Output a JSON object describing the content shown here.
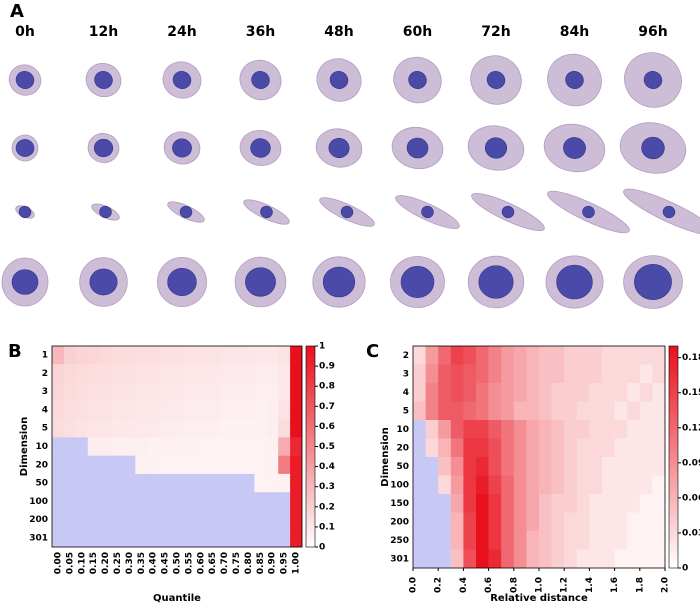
{
  "panel_a": {
    "label": "A",
    "time_points": [
      "0h",
      "12h",
      "24h",
      "36h",
      "48h",
      "60h",
      "72h",
      "84h",
      "96h"
    ]
  },
  "chart_data": [
    {
      "type": "heatmap",
      "panel": "B",
      "xlabel": "Quantile",
      "ylabel": "Dimension",
      "categories": [
        "0.00",
        "0.05",
        "0.10",
        "0.15",
        "0.20",
        "0.25",
        "0.30",
        "0.35",
        "0.40",
        "0.45",
        "0.50",
        "0.55",
        "0.60",
        "0.65",
        "0.70",
        "0.75",
        "0.80",
        "0.85",
        "0.90",
        "0.95",
        "1.00"
      ],
      "y_categories": [
        "1",
        "2",
        "3",
        "4",
        "5",
        "10",
        "20",
        "50",
        "100",
        "200",
        "301"
      ],
      "values": [
        [
          0.3,
          0.2,
          0.18,
          0.17,
          0.16,
          0.15,
          0.15,
          0.14,
          0.14,
          0.13,
          0.13,
          0.12,
          0.12,
          0.12,
          0.11,
          0.11,
          0.11,
          0.1,
          0.1,
          0.12,
          1.0
        ],
        [
          0.18,
          0.16,
          0.15,
          0.14,
          0.14,
          0.13,
          0.13,
          0.12,
          0.12,
          0.11,
          0.11,
          0.1,
          0.1,
          0.1,
          0.09,
          0.09,
          0.09,
          0.08,
          0.08,
          0.1,
          1.0
        ],
        [
          0.17,
          0.15,
          0.14,
          0.13,
          0.13,
          0.12,
          0.12,
          0.11,
          0.11,
          0.1,
          0.1,
          0.09,
          0.09,
          0.09,
          0.08,
          0.08,
          0.08,
          0.07,
          0.07,
          0.1,
          1.0
        ],
        [
          0.16,
          0.14,
          0.13,
          0.12,
          0.12,
          0.11,
          0.11,
          0.1,
          0.1,
          0.09,
          0.09,
          0.08,
          0.08,
          0.08,
          0.07,
          0.07,
          0.07,
          0.06,
          0.07,
          0.12,
          1.0
        ],
        [
          0.15,
          0.13,
          0.12,
          0.11,
          0.11,
          0.1,
          0.1,
          0.09,
          0.09,
          0.08,
          0.08,
          0.07,
          0.07,
          0.07,
          0.06,
          0.06,
          0.06,
          0.06,
          0.07,
          0.15,
          1.0
        ],
        [
          null,
          null,
          null,
          0.08,
          0.08,
          0.07,
          0.07,
          0.07,
          0.06,
          0.06,
          0.06,
          0.06,
          0.05,
          0.05,
          0.05,
          0.05,
          0.05,
          0.05,
          0.06,
          0.35,
          0.9
        ],
        [
          null,
          null,
          null,
          null,
          null,
          null,
          null,
          0.06,
          0.06,
          0.05,
          0.05,
          0.05,
          0.05,
          0.05,
          0.05,
          0.05,
          0.05,
          0.05,
          0.06,
          0.55,
          0.95
        ],
        [
          null,
          null,
          null,
          null,
          null,
          null,
          null,
          null,
          null,
          null,
          null,
          null,
          null,
          null,
          null,
          null,
          null,
          0.05,
          0.05,
          0.06,
          0.95
        ],
        [
          null,
          null,
          null,
          null,
          null,
          null,
          null,
          null,
          null,
          null,
          null,
          null,
          null,
          null,
          null,
          null,
          null,
          null,
          null,
          null,
          0.95
        ],
        [
          null,
          null,
          null,
          null,
          null,
          null,
          null,
          null,
          null,
          null,
          null,
          null,
          null,
          null,
          null,
          null,
          null,
          null,
          null,
          null,
          0.95
        ],
        [
          null,
          null,
          null,
          null,
          null,
          null,
          null,
          null,
          null,
          null,
          null,
          null,
          null,
          null,
          null,
          null,
          null,
          null,
          null,
          null,
          0.95
        ]
      ],
      "colors": [
        "#ffffff",
        "#e8101c"
      ],
      "missing_color": "#c8c8f5",
      "clim": [
        0,
        1
      ],
      "cticks": [
        0,
        0.1,
        0.2,
        0.3,
        0.4,
        0.5,
        0.6,
        0.7,
        0.8,
        0.9,
        1
      ]
    },
    {
      "type": "heatmap",
      "panel": "C",
      "xlabel": "Relative distance",
      "ylabel": "Dimension",
      "bins": [
        0,
        0.1,
        0.2,
        0.3,
        0.4,
        0.5,
        0.6,
        0.7,
        0.8,
        0.9,
        1.0,
        1.1,
        1.2,
        1.3,
        1.4,
        1.5,
        1.6,
        1.7,
        1.8,
        1.9,
        2.0
      ],
      "xlim": [
        0,
        2
      ],
      "xticks": [
        {
          "value": 0,
          "label": "0.0"
        },
        {
          "value": 0.2,
          "label": "0.2"
        },
        {
          "value": 0.4,
          "label": "0.4"
        },
        {
          "value": 0.6,
          "label": "0.6"
        },
        {
          "value": 0.8,
          "label": "0.8"
        },
        {
          "value": 1,
          "label": "1.0"
        },
        {
          "value": 1.2,
          "label": "1.2"
        },
        {
          "value": 1.4,
          "label": "1.4"
        },
        {
          "value": 1.6,
          "label": "1.6"
        },
        {
          "value": 1.8,
          "label": "1.8"
        },
        {
          "value": 2,
          "label": "2.0"
        }
      ],
      "y_categories": [
        "2",
        "3",
        "4",
        "5",
        "10",
        "20",
        "50",
        "100",
        "150",
        "200",
        "250",
        "301"
      ],
      "values": [
        [
          0.03,
          0.08,
          0.12,
          0.15,
          0.14,
          0.12,
          0.1,
          0.08,
          0.07,
          0.06,
          0.05,
          0.05,
          0.04,
          0.04,
          0.04,
          0.03,
          0.03,
          0.03,
          0.03,
          0.03
        ],
        [
          0.04,
          0.09,
          0.13,
          0.14,
          0.13,
          0.12,
          0.1,
          0.08,
          0.07,
          0.06,
          0.05,
          0.05,
          0.04,
          0.04,
          0.04,
          0.03,
          0.03,
          0.03,
          0.02,
          0.03
        ],
        [
          0.04,
          0.1,
          0.13,
          0.14,
          0.13,
          0.11,
          0.09,
          0.08,
          0.07,
          0.06,
          0.05,
          0.04,
          0.04,
          0.04,
          0.03,
          0.03,
          0.03,
          0.02,
          0.03,
          0.02
        ],
        [
          0.05,
          0.1,
          0.13,
          0.13,
          0.12,
          0.11,
          0.09,
          0.08,
          0.06,
          0.06,
          0.05,
          0.04,
          0.04,
          0.03,
          0.03,
          0.03,
          0.02,
          0.03,
          0.02,
          0.02
        ],
        [
          null,
          0.04,
          0.08,
          0.13,
          0.15,
          0.15,
          0.13,
          0.11,
          0.09,
          0.07,
          0.06,
          0.05,
          0.04,
          0.04,
          0.03,
          0.03,
          0.03,
          0.02,
          0.02,
          0.02
        ],
        [
          null,
          0.03,
          0.06,
          0.11,
          0.16,
          0.16,
          0.14,
          0.11,
          0.09,
          0.07,
          0.06,
          0.05,
          0.04,
          0.03,
          0.03,
          0.03,
          0.02,
          0.02,
          0.02,
          0.02
        ],
        [
          null,
          null,
          0.05,
          0.09,
          0.16,
          0.17,
          0.14,
          0.11,
          0.09,
          0.07,
          0.06,
          0.05,
          0.04,
          0.03,
          0.03,
          0.02,
          0.02,
          0.02,
          0.02,
          0.02
        ],
        [
          null,
          null,
          0.03,
          0.08,
          0.16,
          0.18,
          0.15,
          0.12,
          0.09,
          0.07,
          0.06,
          0.05,
          0.04,
          0.03,
          0.03,
          0.02,
          0.02,
          0.02,
          0.02,
          0.01
        ],
        [
          null,
          null,
          null,
          0.07,
          0.16,
          0.19,
          0.16,
          0.12,
          0.09,
          0.07,
          0.05,
          0.04,
          0.04,
          0.03,
          0.02,
          0.02,
          0.02,
          0.02,
          0.01,
          0.01
        ],
        [
          null,
          null,
          null,
          0.06,
          0.15,
          0.19,
          0.16,
          0.12,
          0.09,
          0.07,
          0.05,
          0.04,
          0.03,
          0.03,
          0.02,
          0.02,
          0.02,
          0.01,
          0.01,
          0.01
        ],
        [
          null,
          null,
          null,
          0.06,
          0.15,
          0.19,
          0.16,
          0.12,
          0.09,
          0.06,
          0.05,
          0.04,
          0.03,
          0.03,
          0.02,
          0.02,
          0.02,
          0.01,
          0.01,
          0.01
        ],
        [
          null,
          null,
          null,
          0.05,
          0.14,
          0.19,
          0.17,
          0.12,
          0.09,
          0.06,
          0.05,
          0.04,
          0.03,
          0.02,
          0.02,
          0.02,
          0.01,
          0.01,
          0.01,
          0.01
        ]
      ],
      "colors": [
        "#ffffff",
        "#e8101c"
      ],
      "missing_color": "#c8c8f5",
      "clim": [
        0,
        0.19
      ],
      "cticks": [
        0,
        0.03,
        0.06,
        0.09,
        0.12,
        0.15,
        0.18
      ]
    }
  ]
}
